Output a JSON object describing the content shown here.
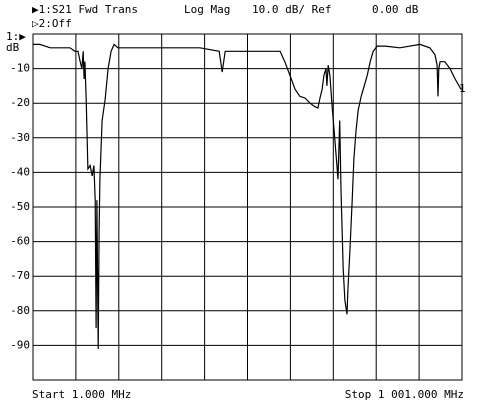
{
  "chart_data": {
    "type": "line",
    "trace_title": "▶1:S21 Fwd Trans",
    "format": "Log Mag",
    "scale": "10.0 dB/ Ref",
    "reference": "0.00 dB",
    "trace2": "▷2:Off",
    "ref_marker": "1:▶",
    "ylabel": "dB",
    "end_marker": "1",
    "start_label": "Start 1.000 MHz",
    "stop_label": "Stop 1 001.000 MHz",
    "xlim": [
      1,
      1001
    ],
    "xticks": [
      1,
      101,
      201,
      301,
      401,
      501,
      601,
      701,
      801,
      901,
      1001
    ],
    "ylim": [
      -100,
      0
    ],
    "yticks": [
      -90,
      -80,
      -70,
      -60,
      -50,
      -40,
      -30,
      -20,
      -10
    ],
    "grid": true,
    "color": "#000000",
    "x": [
      1,
      17,
      41,
      64,
      87,
      99,
      106,
      111,
      115,
      118,
      120,
      122,
      125,
      129,
      134,
      139,
      143,
      146,
      148,
      150,
      153,
      155,
      157,
      162,
      169,
      176,
      183,
      190,
      199,
      250,
      320,
      390,
      435,
      442,
      449,
      507,
      577,
      588,
      600,
      612,
      623,
      635,
      647,
      658,
      665,
      670,
      675,
      679,
      684,
      686,
      689,
      693,
      698,
      705,
      712,
      716,
      719,
      724,
      728,
      733,
      735,
      740,
      745,
      749,
      754,
      759,
      766,
      773,
      780,
      787,
      794,
      803,
      822,
      856,
      903,
      926,
      938,
      943,
      945,
      947,
      950,
      961,
      973,
      985,
      999
    ],
    "values": [
      -3,
      -3,
      -4,
      -4,
      -4,
      -5,
      -5,
      -8,
      -10,
      -5,
      -13,
      -8,
      -19,
      -39,
      -38,
      -41,
      -38,
      -48,
      -85,
      -48,
      -91,
      -57,
      -42,
      -25,
      -19,
      -10,
      -5,
      -3,
      -4,
      -4,
      -4,
      -4,
      -5,
      -11,
      -5,
      -5,
      -5,
      -8,
      -12,
      -16,
      -18,
      -18.5,
      -20,
      -21,
      -21.4,
      -18.5,
      -16,
      -12,
      -10,
      -15,
      -9,
      -12,
      -20.5,
      -31,
      -42,
      -25,
      -45,
      -68,
      -77,
      -81,
      -74,
      -62,
      -48,
      -36,
      -28,
      -22,
      -18,
      -15,
      -12,
      -8,
      -5,
      -3.5,
      -3.5,
      -4,
      -3,
      -4,
      -6,
      -9,
      -18,
      -10,
      -8,
      -8,
      -10,
      -13,
      -16
    ]
  }
}
